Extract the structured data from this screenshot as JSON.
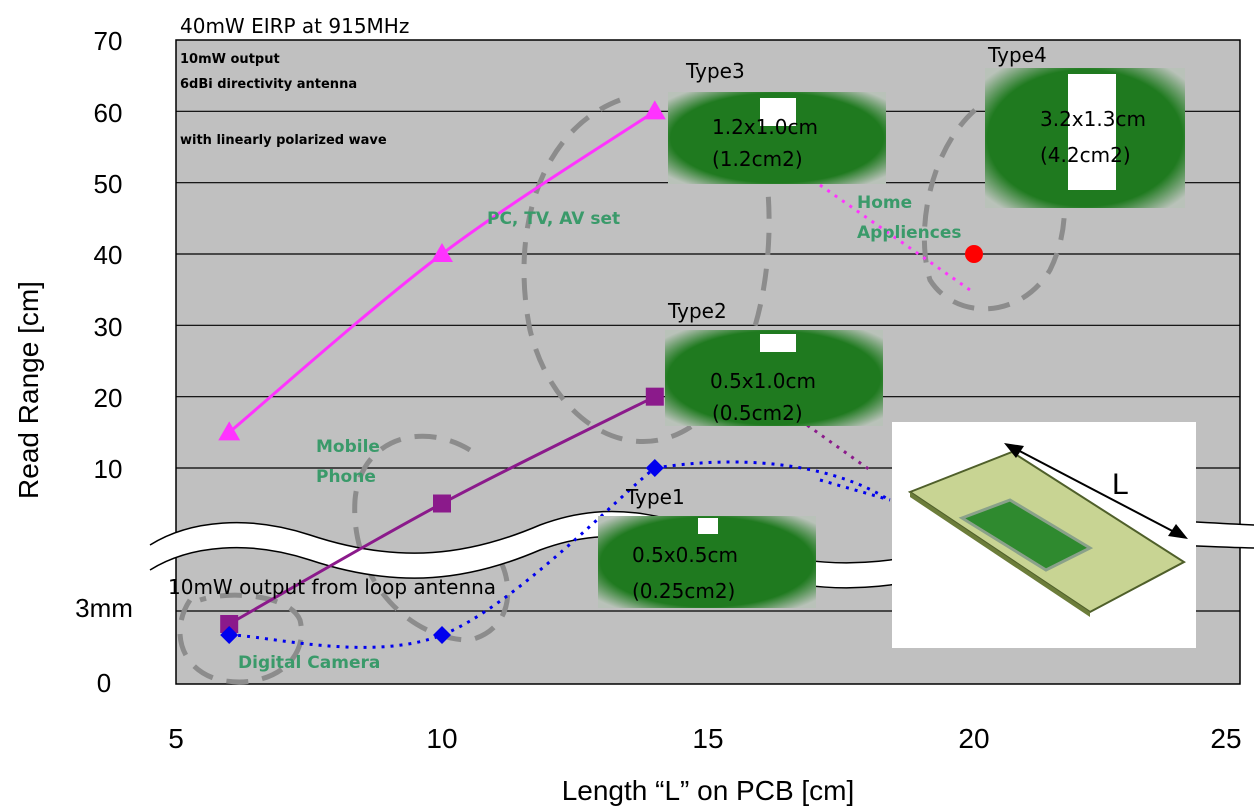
{
  "chart_data": {
    "type": "line",
    "title": "40mW EIRP at 915MHz",
    "xlabel": "Length “L” on PCB [cm]",
    "ylabel": "Read Range [cm]",
    "xlim": [
      5,
      25
    ],
    "ylim": [
      0,
      70
    ],
    "xticks": [
      "5",
      "10",
      "15",
      "20",
      "25"
    ],
    "yticks": [
      "70",
      "60",
      "50",
      "40",
      "30",
      "20",
      "10",
      "3mm",
      "0"
    ],
    "grid": true,
    "axis_break": "between 3mm and 10",
    "series": [
      {
        "name": "Type3",
        "color": "#ff33ff",
        "marker": "triangle",
        "style": "solid",
        "x": [
          6,
          10,
          14
        ],
        "y": [
          15,
          40,
          60
        ]
      },
      {
        "name": "Type2",
        "color": "#8b1a8b",
        "marker": "square",
        "style": "solid",
        "x": [
          6,
          10,
          14
        ],
        "y": [
          "3mm",
          5,
          20
        ]
      },
      {
        "name": "Type1",
        "color": "#0000ee",
        "marker": "diamond",
        "style": "dotted",
        "x": [
          6,
          10,
          14
        ],
        "y": [
          "2mm",
          "2mm",
          10
        ]
      },
      {
        "name": "Type4",
        "color": "#ff0000",
        "marker": "circle",
        "style": "none",
        "x": [
          20
        ],
        "y": [
          40
        ]
      }
    ],
    "annotations": {
      "notes": [
        "10mW output",
        "6dBi directivity antenna",
        "with linearly polarized wave"
      ],
      "bottom_note": "10mW output from loop antenna",
      "regions": [
        "PC, TV, AV set",
        "Home",
        "Appliences",
        "Mobile",
        "Phone",
        "Digital Camera"
      ],
      "types": [
        {
          "label": "Type3",
          "size": "1.2x1.0cm",
          "area": "(1.2cm2)"
        },
        {
          "label": "Type4",
          "size": "3.2x1.3cm",
          "area": "(4.2cm2)"
        },
        {
          "label": "Type2",
          "size": "0.5x1.0cm",
          "area": "(0.5cm2)"
        },
        {
          "label": "Type1",
          "size": "0.5x0.5cm",
          "area": "(0.25cm2)"
        }
      ],
      "pcb_label": "L"
    }
  }
}
